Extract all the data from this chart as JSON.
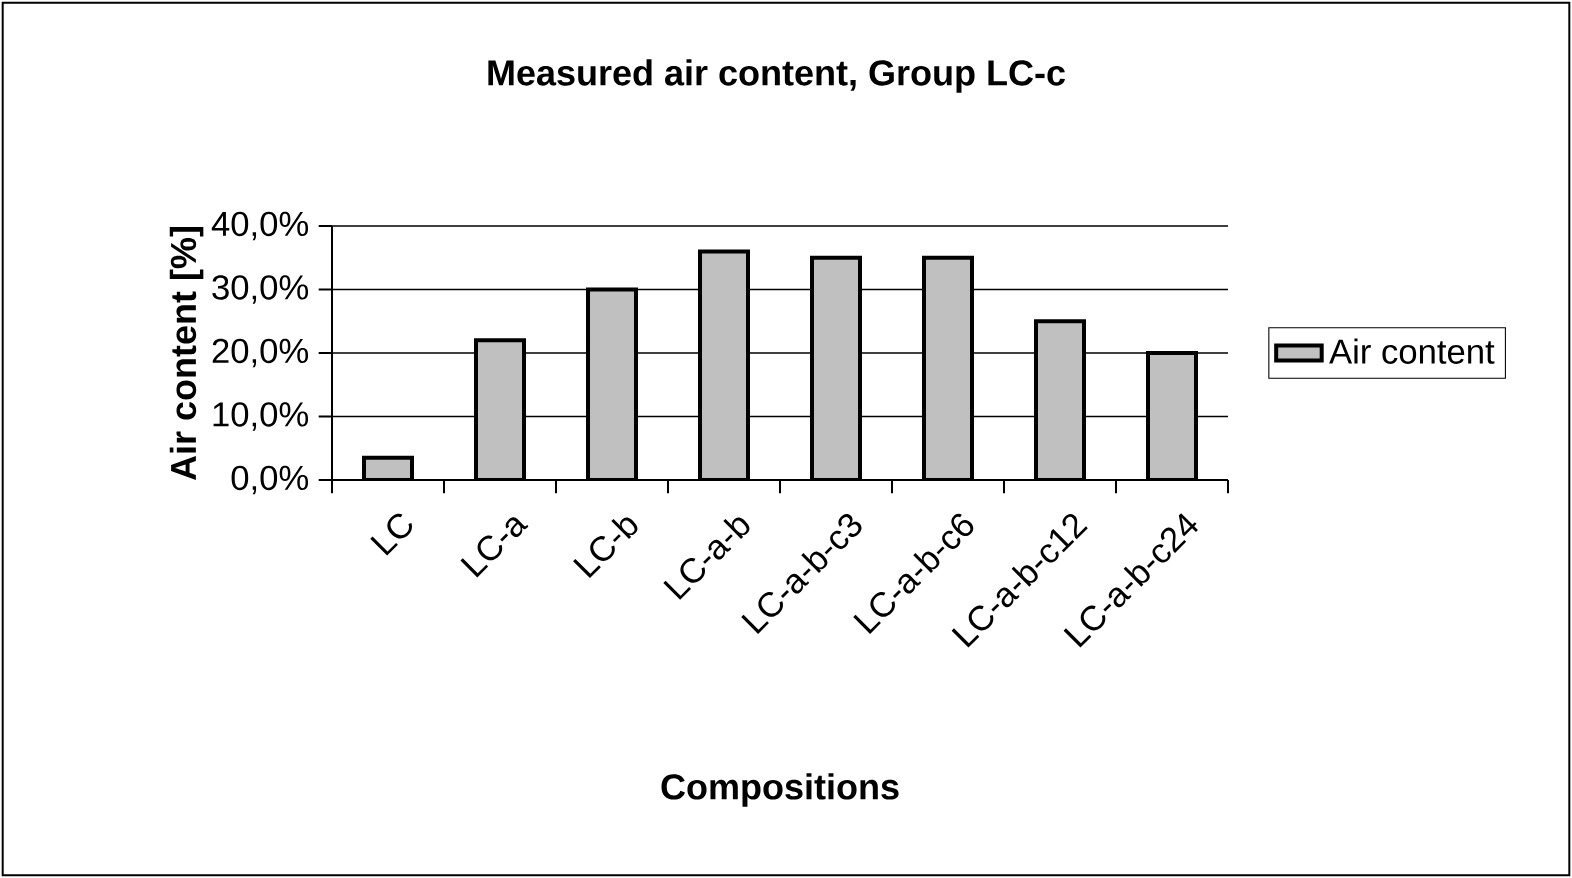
{
  "chart_data": {
    "type": "bar",
    "title": "Measured air content, Group LC-c",
    "xlabel": "Compositions",
    "ylabel": "Air content [%]",
    "categories": [
      "LC",
      "LC-a",
      "LC-b",
      "LC-a-b",
      "LC-a-b-c3",
      "LC-a-b-c6",
      "LC-a-b-c12",
      "LC-a-b-c24"
    ],
    "series": [
      {
        "name": "Air content",
        "color": "#c0c0c0",
        "values": [
          3.5,
          22,
          30,
          36,
          35,
          35,
          25,
          20
        ]
      }
    ],
    "ylim": [
      0,
      40
    ],
    "yticks": [
      {
        "value": 0,
        "label": "0,0%"
      },
      {
        "value": 10,
        "label": "10,0%"
      },
      {
        "value": 20,
        "label": "20,0%"
      },
      {
        "value": 30,
        "label": "30,0%"
      },
      {
        "value": 40,
        "label": "40,0%"
      }
    ],
    "grid": "y",
    "legend": "right"
  }
}
